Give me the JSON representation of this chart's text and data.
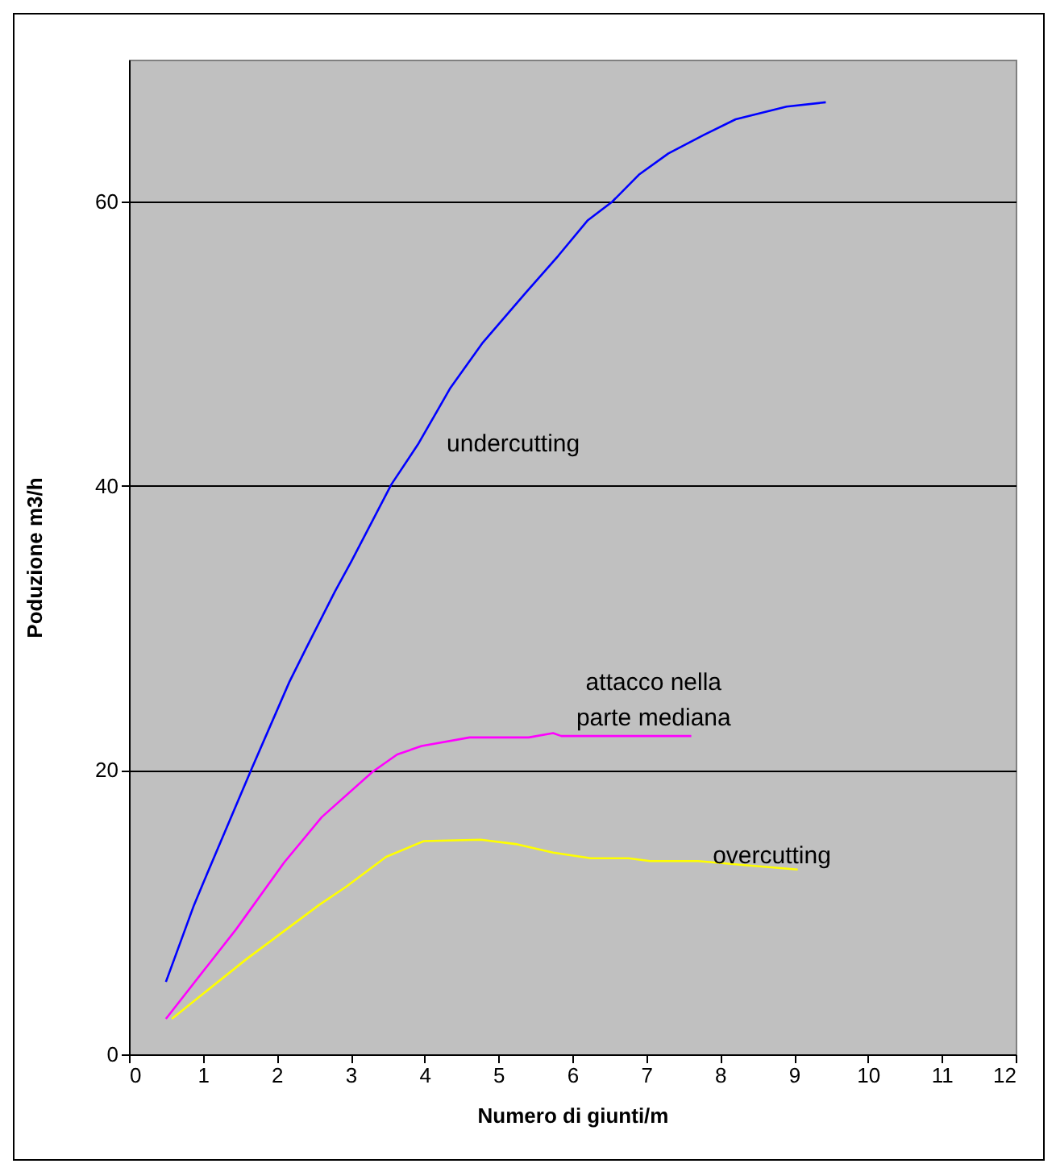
{
  "chart_data": {
    "type": "line",
    "xlabel": "Numero di giunti/m",
    "ylabel": "Poduzione m3/h",
    "xlim": [
      0,
      12
    ],
    "xticks": [
      0,
      1,
      2,
      3,
      4,
      5,
      6,
      7,
      8,
      9,
      10,
      11,
      12
    ],
    "ylim": [
      0,
      70
    ],
    "yticks": [
      0,
      20,
      40,
      60
    ],
    "grid": "y",
    "legend": false,
    "marker": "none",
    "line_style": "solid",
    "series": [
      {
        "name": "undercutting",
        "color": "#0000ff",
        "x": [
          0.5,
          0.88,
          1.0,
          1.66,
          2.17,
          2.39,
          2.79,
          3.01,
          3.55,
          3.92,
          4.35,
          4.79,
          5.37,
          5.81,
          6.21,
          6.54,
          6.9,
          7.3,
          7.78,
          8.21,
          8.9,
          9.43
        ],
        "values": [
          5.1,
          10.5,
          12.0,
          20.1,
          26.2,
          28.5,
          32.6,
          34.7,
          40.1,
          43,
          46.9,
          50.1,
          53.6,
          56.2,
          58.7,
          60,
          61.9,
          63.4,
          64.7,
          65.8,
          66.7,
          67.0
        ]
      },
      {
        "name": "attacco nella\nparte mediana",
        "color": "#ff00ff",
        "x": [
          0.5,
          1.45,
          2.1,
          2.61,
          3.3,
          3.63,
          3.96,
          4.61,
          5.41,
          5.74,
          5.85,
          7.61
        ],
        "values": [
          2.5,
          8.8,
          13.5,
          16.7,
          19.9,
          21.1,
          21.7,
          22.3,
          22.3,
          22.6,
          22.4,
          22.4
        ]
      },
      {
        "name": "overcutting",
        "color": "#ffff00",
        "x": [
          0.58,
          1.59,
          2.57,
          2.94,
          3.48,
          3.99,
          4.76,
          5.23,
          5.74,
          6.25,
          6.76,
          7.05,
          7.7,
          8.36,
          9.05
        ],
        "values": [
          2.5,
          6.7,
          10.5,
          11.8,
          13.9,
          15.0,
          15.1,
          14.8,
          14.2,
          13.8,
          13.8,
          13.6,
          13.6,
          13.3,
          13.0
        ]
      }
    ]
  }
}
